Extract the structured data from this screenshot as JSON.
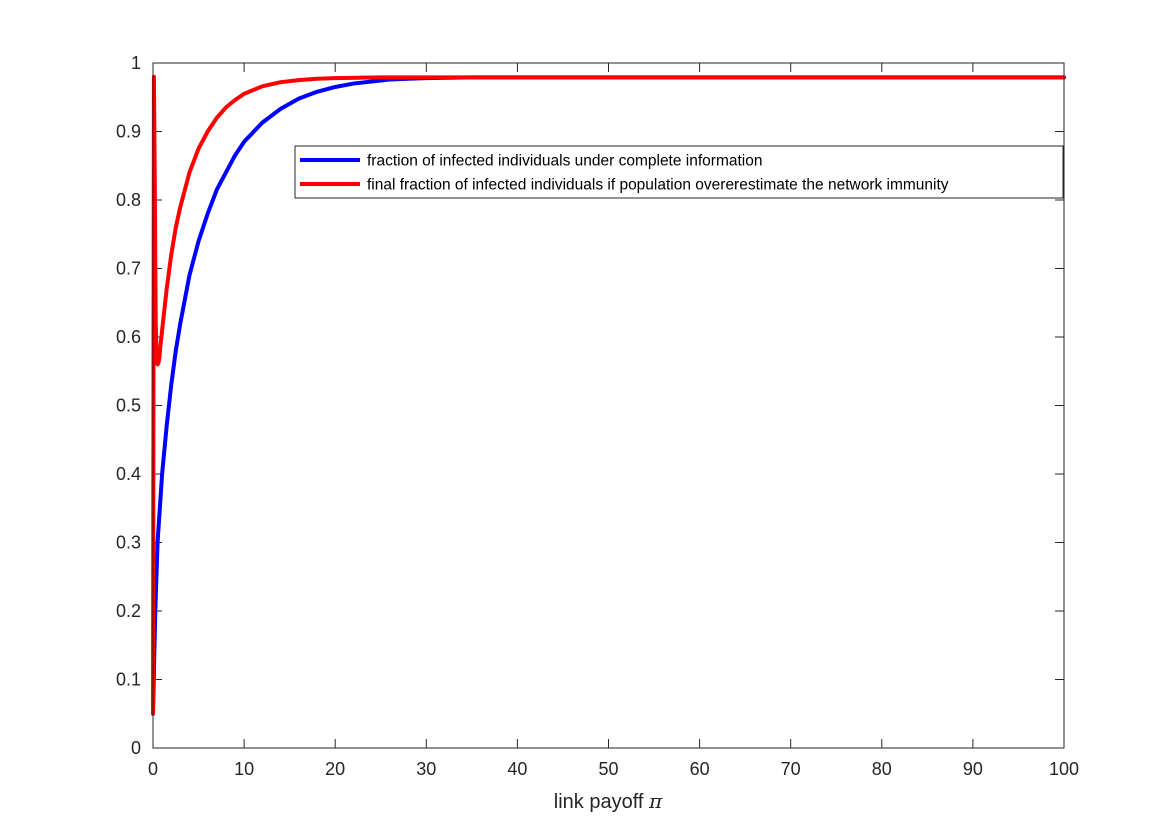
{
  "chart_data": {
    "type": "line",
    "xlabel": "link payoff",
    "xlabel_symbol": "π",
    "xlim": [
      0,
      100
    ],
    "ylim": [
      0,
      1
    ],
    "xticks": [
      0,
      10,
      20,
      30,
      40,
      50,
      60,
      70,
      80,
      90,
      100
    ],
    "yticks": [
      0,
      0.1,
      0.2,
      0.3,
      0.4,
      0.5,
      0.6,
      0.7,
      0.8,
      0.9,
      1
    ],
    "grid": false,
    "legend_position": "top-right",
    "series": [
      {
        "name": "fraction of infected individuals under complete information",
        "color": "#0000ff",
        "x": [
          0,
          0.25,
          0.5,
          1,
          1.5,
          2,
          2.5,
          3,
          4,
          5,
          6,
          7,
          8,
          9,
          10,
          12,
          14,
          16,
          18,
          20,
          22,
          24,
          26,
          28,
          30,
          35,
          40,
          50,
          60,
          70,
          80,
          90,
          100
        ],
        "y": [
          0.05,
          0.2,
          0.3,
          0.4,
          0.47,
          0.53,
          0.58,
          0.62,
          0.69,
          0.74,
          0.78,
          0.815,
          0.84,
          0.865,
          0.885,
          0.913,
          0.933,
          0.948,
          0.958,
          0.965,
          0.97,
          0.973,
          0.976,
          0.977,
          0.978,
          0.979,
          0.979,
          0.979,
          0.979,
          0.979,
          0.979,
          0.979,
          0.979
        ]
      },
      {
        "name": "final fraction of infected individuals if population overerestimate the network immunity",
        "color": "#ff0000",
        "x": [
          0,
          0.1,
          0.2,
          0.3,
          0.4,
          0.5,
          0.6,
          0.7,
          0.8,
          1,
          1.5,
          2,
          2.5,
          3,
          4,
          5,
          6,
          7,
          8,
          9,
          10,
          12,
          14,
          16,
          18,
          20,
          25,
          30,
          40,
          50,
          60,
          70,
          80,
          90,
          100
        ],
        "y": [
          0.05,
          0.98,
          0.82,
          0.62,
          0.57,
          0.56,
          0.562,
          0.57,
          0.585,
          0.61,
          0.67,
          0.72,
          0.76,
          0.79,
          0.84,
          0.875,
          0.9,
          0.92,
          0.935,
          0.946,
          0.955,
          0.966,
          0.972,
          0.975,
          0.977,
          0.978,
          0.979,
          0.979,
          0.979,
          0.979,
          0.979,
          0.979,
          0.979,
          0.979,
          0.979
        ]
      }
    ]
  }
}
